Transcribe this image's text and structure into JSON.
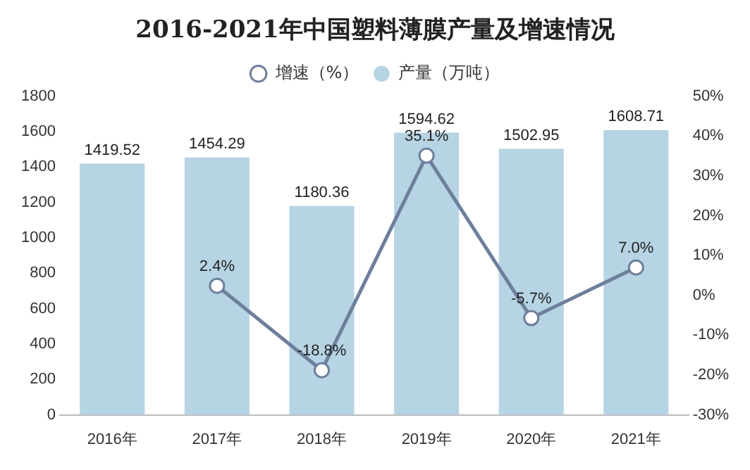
{
  "chart_data": {
    "type": "bar",
    "title": "2016-2021年中国塑料薄膜产量及增速情况",
    "categories": [
      "2016年",
      "2017年",
      "2018年",
      "2019年",
      "2020年",
      "2021年"
    ],
    "series": [
      {
        "name": "产量（万吨）",
        "color": "#b7d4e4",
        "values": [
          1419.52,
          1454.29,
          1180.36,
          1594.62,
          1502.95,
          1608.71
        ],
        "value_labels": [
          "1419.52",
          "1454.29",
          "1180.36",
          "1594.62",
          "1502.95",
          "1608.71"
        ]
      },
      {
        "name": "增速（%）",
        "type": "line",
        "axis": "y2",
        "color": "#6e7f9c",
        "marker": "circle",
        "values": [
          null,
          2.4,
          -18.8,
          35.1,
          -5.7,
          7.0
        ],
        "value_labels": [
          null,
          "2.4%",
          "-18.8%",
          "35.1%",
          "-5.7%",
          "7.0%"
        ]
      }
    ],
    "ylim": [
      0,
      1800
    ],
    "yticks": [
      0,
      200,
      400,
      600,
      800,
      1000,
      1200,
      1400,
      1600,
      1800
    ],
    "y2lim": [
      -30,
      50
    ],
    "y2ticks": [
      {
        "value": -30,
        "label": "-30%"
      },
      {
        "value": -20,
        "label": "-20%"
      },
      {
        "value": -10,
        "label": "-10%"
      },
      {
        "value": 0,
        "label": "0%"
      },
      {
        "value": 10,
        "label": "10%"
      },
      {
        "value": 20,
        "label": "20%"
      },
      {
        "value": 30,
        "label": "30%"
      },
      {
        "value": 40,
        "label": "40%"
      },
      {
        "value": 50,
        "label": "50%"
      }
    ],
    "grid": false,
    "legend": "top"
  }
}
